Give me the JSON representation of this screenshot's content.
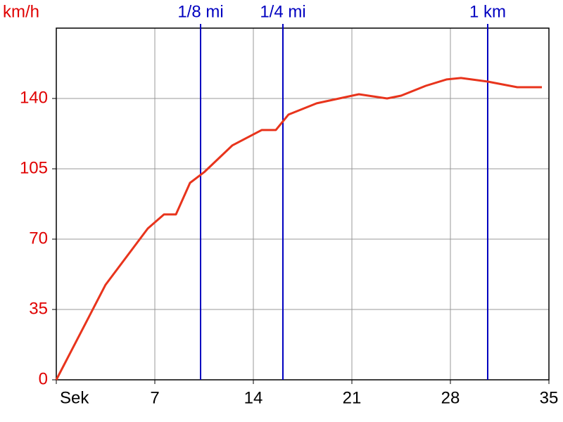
{
  "chart_data": {
    "type": "line",
    "y_label": "km/h",
    "x": [
      0,
      3.5,
      6.5,
      7.65,
      8.5,
      9.5,
      10.5,
      12.5,
      14.6,
      15.6,
      16.5,
      18.5,
      21.5,
      23.5,
      24.5,
      26.25,
      27.75,
      28.75,
      30.65,
      32.75,
      34.5
    ],
    "series": [
      {
        "color": "#e8341c",
        "values": [
          0,
          47.3,
          75.3,
          82.3,
          82.3,
          98,
          103.3,
          116.6,
          124.3,
          124.3,
          132,
          137.6,
          142.1,
          140,
          141.4,
          146.3,
          149.5,
          150.2,
          148.4,
          145.6,
          145.6
        ]
      }
    ],
    "xlim": [
      0,
      35
    ],
    "ylim": [
      0,
      175
    ],
    "xticks": [
      {
        "value": 0,
        "label": "Sek"
      },
      7,
      14,
      21,
      28,
      35
    ],
    "yticks": [
      0,
      35,
      70,
      105,
      140
    ],
    "grid": true,
    "markers": [
      {
        "label": "1/8 mi",
        "x": 10.25
      },
      {
        "label": "1/4 mi",
        "x": 16.1
      },
      {
        "label": "1 km",
        "x": 30.65
      }
    ],
    "marker_color": "#0000c0"
  }
}
